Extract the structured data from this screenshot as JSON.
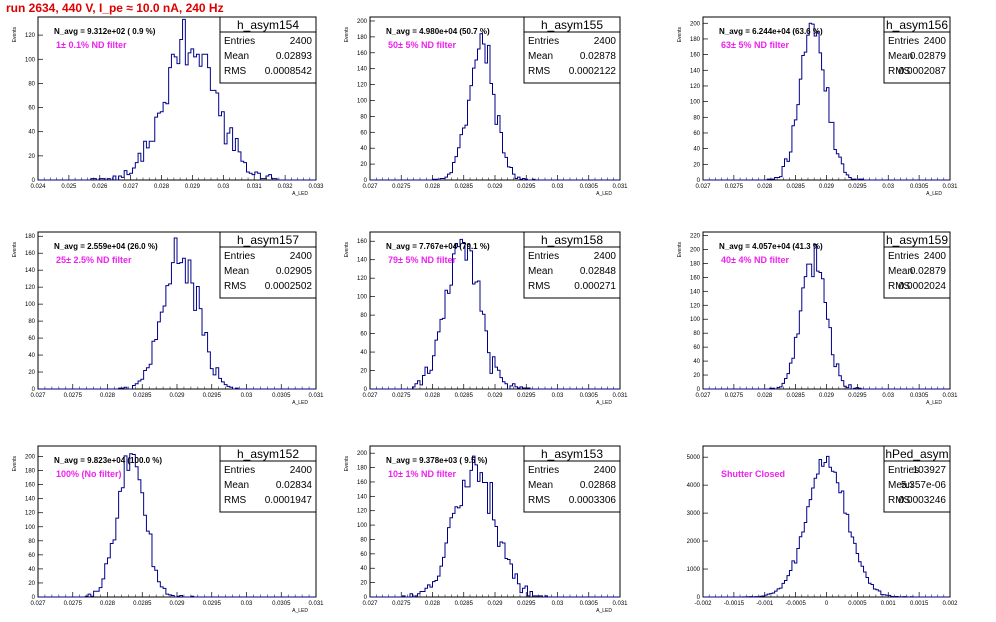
{
  "run_title": "run 2634,   440 V, I_pe ≈ 10.0 nA, 240 Hz",
  "colors": {
    "histogram_line": "#00008b",
    "filter_label": "#ee22ee",
    "run_title": "#e00000"
  },
  "chart_data": [
    {
      "type": "histogram",
      "stats": {
        "name": "h_asym154",
        "entries": "2400",
        "mean": "0.02893",
        "rms": "0.0008542"
      },
      "navg": "N_avg = 9.312e+02 ( 0.9 %)",
      "filter_label": "1± 0.1% ND filter",
      "xlabel": "A_LED",
      "ylabel": "Events",
      "xlim": [
        0.024,
        0.033
      ],
      "ylim": [
        0,
        135
      ],
      "x_ticks": [
        "0.024",
        "0.025",
        "0.026",
        "0.027",
        "0.028",
        "0.029",
        "0.03",
        "0.031",
        "0.032",
        "0.033"
      ],
      "y_ticks": [
        "0",
        "20",
        "40",
        "60",
        "80",
        "100",
        "120"
      ],
      "y_tick_values": [
        0,
        20,
        40,
        60,
        80,
        100,
        120
      ],
      "mean_value": 0.02893,
      "rms_value": 0.0008542,
      "entries_value": 2400
    },
    {
      "type": "histogram",
      "stats": {
        "name": "h_asym155",
        "entries": "2400",
        "mean": "0.02878",
        "rms": "0.0002122"
      },
      "navg": "N_avg = 4.980e+04 (50.7 %)",
      "filter_label": "50± 5% ND filter",
      "xlabel": "A_LED",
      "ylabel": "Events",
      "xlim": [
        0.027,
        0.031
      ],
      "ylim": [
        0,
        205
      ],
      "x_ticks": [
        "0.027",
        "0.0275",
        "0.028",
        "0.0285",
        "0.029",
        "0.0295",
        "0.03",
        "0.0305",
        "0.031"
      ],
      "y_ticks": [
        "0",
        "20",
        "40",
        "60",
        "80",
        "100",
        "120",
        "140",
        "160",
        "180",
        "200"
      ],
      "y_tick_values": [
        0,
        20,
        40,
        60,
        80,
        100,
        120,
        140,
        160,
        180,
        200
      ],
      "mean_value": 0.02878,
      "rms_value": 0.0002122,
      "entries_value": 2400
    },
    {
      "type": "histogram",
      "stats": {
        "name": "h_asym156",
        "entries": "2400",
        "mean": "0.02879",
        "rms": "0.0002087"
      },
      "navg": "N_avg = 6.244e+04 (63.6 %)",
      "filter_label": "63± 5% ND filter",
      "xlabel": "A_LED",
      "ylabel": "Events",
      "xlim": [
        0.027,
        0.031
      ],
      "ylim": [
        0,
        208
      ],
      "x_ticks": [
        "0.027",
        "0.0275",
        "0.028",
        "0.0285",
        "0.029",
        "0.0295",
        "0.03",
        "0.0305",
        "0.031"
      ],
      "y_ticks": [
        "0",
        "20",
        "40",
        "60",
        "80",
        "100",
        "120",
        "140",
        "160",
        "180",
        "200"
      ],
      "y_tick_values": [
        0,
        20,
        40,
        60,
        80,
        100,
        120,
        140,
        160,
        180,
        200
      ],
      "mean_value": 0.02879,
      "rms_value": 0.0002087,
      "entries_value": 2400
    },
    {
      "type": "histogram",
      "stats": {
        "name": "h_asym157",
        "entries": "2400",
        "mean": "0.02905",
        "rms": "0.0002502"
      },
      "navg": "N_avg = 2.559e+04 (26.0 %)",
      "filter_label": "25± 2.5% ND filter",
      "xlabel": "A_LED",
      "ylabel": "Events",
      "xlim": [
        0.027,
        0.031
      ],
      "ylim": [
        0,
        185
      ],
      "x_ticks": [
        "0.027",
        "0.0275",
        "0.028",
        "0.0285",
        "0.029",
        "0.0295",
        "0.03",
        "0.0305",
        "0.031"
      ],
      "y_ticks": [
        "0",
        "20",
        "40",
        "60",
        "80",
        "100",
        "120",
        "140",
        "160",
        "180"
      ],
      "y_tick_values": [
        0,
        20,
        40,
        60,
        80,
        100,
        120,
        140,
        160,
        180
      ],
      "mean_value": 0.02905,
      "rms_value": 0.0002502,
      "entries_value": 2400
    },
    {
      "type": "histogram",
      "stats": {
        "name": "h_asym158",
        "entries": "2400",
        "mean": "0.02848",
        "rms": "0.000271"
      },
      "navg": "N_avg = 7.767e+04 (79.1 %)",
      "filter_label": "79± 5% ND filter",
      "xlabel": "A_LED",
      "ylabel": "Events",
      "xlim": [
        0.027,
        0.031
      ],
      "ylim": [
        0,
        170
      ],
      "x_ticks": [
        "0.027",
        "0.0275",
        "0.028",
        "0.0285",
        "0.029",
        "0.0295",
        "0.03",
        "0.0305",
        "0.031"
      ],
      "y_ticks": [
        "0",
        "20",
        "40",
        "60",
        "80",
        "100",
        "120",
        "140",
        "160"
      ],
      "y_tick_values": [
        0,
        20,
        40,
        60,
        80,
        100,
        120,
        140,
        160
      ],
      "mean_value": 0.02848,
      "rms_value": 0.000271,
      "entries_value": 2400
    },
    {
      "type": "histogram",
      "stats": {
        "name": "h_asym159",
        "entries": "2400",
        "mean": "0.02879",
        "rms": "0.0002024"
      },
      "navg": "N_avg = 4.057e+04 (41.3 %)",
      "filter_label": "40± 4% ND filter",
      "xlabel": "A_LED",
      "ylabel": "Events",
      "xlim": [
        0.027,
        0.031
      ],
      "ylim": [
        0,
        225
      ],
      "x_ticks": [
        "0.027",
        "0.0275",
        "0.028",
        "0.0285",
        "0.029",
        "0.0295",
        "0.03",
        "0.0305",
        "0.031"
      ],
      "y_ticks": [
        "0",
        "20",
        "40",
        "60",
        "80",
        "100",
        "120",
        "140",
        "160",
        "180",
        "200",
        "220"
      ],
      "y_tick_values": [
        0,
        20,
        40,
        60,
        80,
        100,
        120,
        140,
        160,
        180,
        200,
        220
      ],
      "mean_value": 0.02879,
      "rms_value": 0.0002024,
      "entries_value": 2400
    },
    {
      "type": "histogram",
      "stats": {
        "name": "h_asym152",
        "entries": "2400",
        "mean": "0.02834",
        "rms": "0.0001947"
      },
      "navg": "N_avg = 9.823e+04 (100.0 %)",
      "filter_label": "100% (No filter)",
      "xlabel": "A_LED",
      "ylabel": "Events",
      "xlim": [
        0.027,
        0.031
      ],
      "ylim": [
        0,
        215
      ],
      "x_ticks": [
        "0.027",
        "0.0275",
        "0.028",
        "0.0285",
        "0.029",
        "0.0295",
        "0.03",
        "0.0305",
        "0.031"
      ],
      "y_ticks": [
        "0",
        "20",
        "40",
        "60",
        "80",
        "100",
        "120",
        "140",
        "160",
        "180",
        "200"
      ],
      "y_tick_values": [
        0,
        20,
        40,
        60,
        80,
        100,
        120,
        140,
        160,
        180,
        200
      ],
      "mean_value": 0.02834,
      "rms_value": 0.0001947,
      "entries_value": 2400
    },
    {
      "type": "histogram",
      "stats": {
        "name": "h_asym153",
        "entries": "2400",
        "mean": "0.02868",
        "rms": "0.0003306"
      },
      "navg": "N_avg = 9.378e+03 ( 9.5 %)",
      "filter_label": "10± 1% ND filter",
      "xlabel": "A_LED",
      "ylabel": "Events",
      "xlim": [
        0.027,
        0.031
      ],
      "ylim": [
        0,
        210
      ],
      "x_ticks": [
        "0.027",
        "0.0275",
        "0.028",
        "0.0285",
        "0.029",
        "0.0295",
        "0.03",
        "0.0305",
        "0.031"
      ],
      "y_ticks": [
        "0",
        "20",
        "40",
        "60",
        "80",
        "100",
        "120",
        "140",
        "160",
        "180",
        "200"
      ],
      "y_tick_values": [
        0,
        20,
        40,
        60,
        80,
        100,
        120,
        140,
        160,
        180,
        200
      ],
      "mean_value": 0.02868,
      "rms_value": 0.0003306,
      "entries_value": 2400
    },
    {
      "type": "histogram",
      "stats": {
        "name": "hPed_asym",
        "entries": "103927",
        "mean": "5.357e-06",
        "rms": "0.0003246"
      },
      "navg": "",
      "filter_label": "Shutter Closed",
      "xlabel": "",
      "ylabel": "",
      "xlim": [
        -0.002,
        0.002
      ],
      "ylim": [
        0,
        5400
      ],
      "x_ticks": [
        "-0.002",
        "-0.0015",
        "-0.001",
        "-0.0005",
        "0",
        "0.0005",
        "0.001",
        "0.0015",
        "0.002"
      ],
      "y_ticks": [
        "0",
        "1000",
        "2000",
        "3000",
        "4000",
        "5000"
      ],
      "y_tick_values": [
        0,
        1000,
        2000,
        3000,
        4000,
        5000
      ],
      "mean_value": 5.357e-06,
      "rms_value": 0.0003246,
      "entries_value": 103927
    }
  ]
}
